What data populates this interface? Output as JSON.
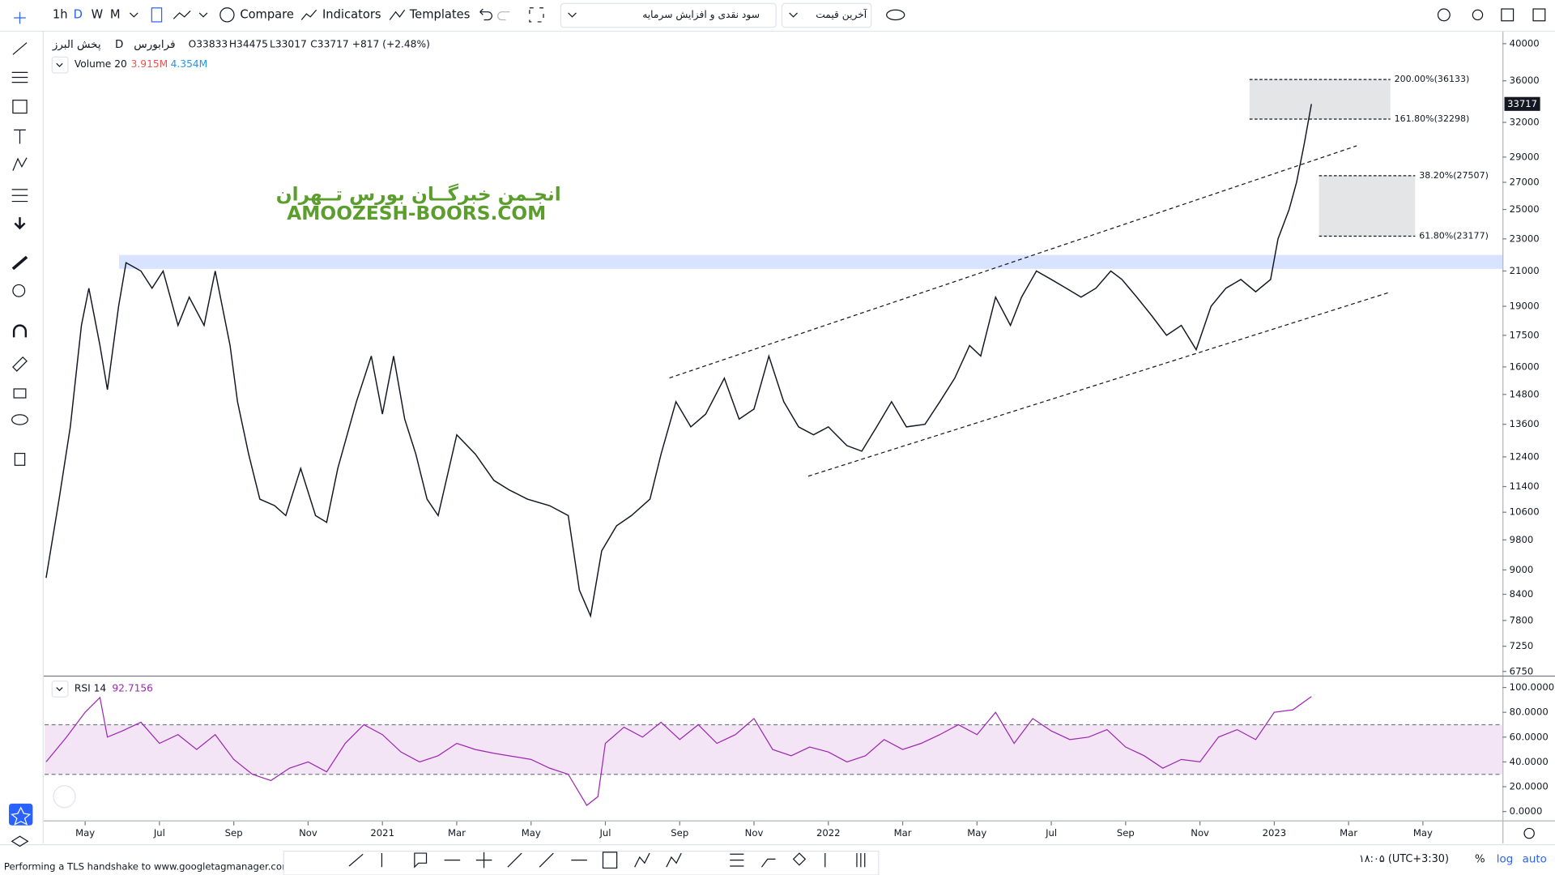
{
  "ui": {
    "intervals": [
      "1h",
      "D",
      "W",
      "M"
    ],
    "compare": "Compare",
    "indicators": "Indicators",
    "templates": "Templates",
    "dropdown_1": "سود نقدی و افزایش سرمایه",
    "dropdown_2": "آخرین قیمت",
    "watermark_fa": "انجـمن خبرگــان بورس تــهران",
    "watermark_en": "AMOOZESH-BOORS.COM",
    "status": "Performing a TLS handshake to www.googletagmanager.com...",
    "clock": "۱۸:۰۵ (UTC+3:30)",
    "scale_buttons": [
      "%",
      "log",
      "auto"
    ]
  },
  "chart_data": [
    {
      "type": "line",
      "symbol": "پخش البرز",
      "interval": "D",
      "exchange": "فرابورس",
      "ohlc": [
        "O33833",
        "H34475",
        "L33017",
        "C33717"
      ],
      "change": "+817 (+2.48%)",
      "volume_label": "Volume 20",
      "volume_values": [
        "3.915M",
        "4.354M"
      ],
      "x": [
        2.95,
        3.3,
        3.6,
        3.9,
        4.1,
        4.4,
        4.6,
        4.9,
        5.1,
        5.5,
        5.8,
        6.1,
        6.5,
        6.8,
        7.2,
        7.5,
        7.9,
        8.1,
        8.4,
        8.7,
        9.1,
        9.4,
        9.8,
        10.2,
        10.5,
        10.8,
        11.3,
        11.7,
        12.0,
        12.3,
        12.6,
        12.9,
        13.2,
        13.5,
        14.0,
        14.5,
        15.0,
        15.4,
        15.9,
        16.5,
        17.0,
        17.3,
        17.6,
        17.9,
        18.3,
        18.7,
        19.2,
        19.5,
        19.9,
        20.3,
        20.7,
        21.2,
        21.6,
        22.0,
        22.4,
        22.8,
        23.2,
        23.6,
        24.0,
        24.5,
        24.9,
        25.3,
        25.7,
        26.1,
        26.6,
        27.0,
        27.4,
        27.8,
        28.1,
        28.5,
        28.9,
        29.2,
        29.6,
        30.0,
        30.4,
        30.8,
        31.2,
        31.6,
        31.9,
        32.3,
        32.7,
        33.1,
        33.5,
        33.9,
        34.3,
        34.7,
        35.1,
        35.5,
        35.9,
        36.1,
        36.4,
        36.6,
        36.8,
        37.0
      ],
      "values": [
        8800,
        11000,
        13500,
        18000,
        20000,
        17000,
        15000,
        19000,
        21500,
        21000,
        20000,
        21000,
        18000,
        19500,
        18000,
        21000,
        17000,
        14500,
        12500,
        11000,
        10800,
        10500,
        12000,
        10500,
        10300,
        12000,
        14500,
        16500,
        14000,
        16500,
        13800,
        12500,
        11000,
        10500,
        13200,
        12500,
        11600,
        11300,
        11000,
        10800,
        10500,
        8500,
        7900,
        9500,
        10200,
        10500,
        11000,
        12500,
        14500,
        13500,
        14000,
        15500,
        13800,
        14200,
        16500,
        14500,
        13500,
        13200,
        13500,
        12800,
        12600,
        13500,
        14500,
        13500,
        13600,
        14500,
        15500,
        17000,
        16500,
        19500,
        18000,
        19500,
        21000,
        20500,
        20000,
        19500,
        20000,
        21000,
        20500,
        19500,
        18500,
        17500,
        18000,
        16800,
        19000,
        20000,
        20500,
        19800,
        20500,
        23000,
        25000,
        27000,
        30000,
        33717
      ],
      "color": "#131722",
      "log": true,
      "ylim": [
        6690,
        41370
      ],
      "yticks": [
        40000,
        36000,
        32000,
        29000,
        27000,
        25000,
        23000,
        21000,
        19000,
        17500,
        16000,
        14800,
        13600,
        12400,
        11400,
        10600,
        9800,
        9000,
        8400,
        7800,
        7250,
        6750
      ],
      "xlim": [
        2.91,
        42.14
      ],
      "xticks": [
        {
          "value": 4,
          "label": "May"
        },
        {
          "value": 6,
          "label": "Jul"
        },
        {
          "value": 8,
          "label": "Sep"
        },
        {
          "value": 10,
          "label": "Nov"
        },
        {
          "value": 12,
          "label": "2021"
        },
        {
          "value": 14,
          "label": "Mar"
        },
        {
          "value": 16,
          "label": "May"
        },
        {
          "value": 18,
          "label": "Jul"
        },
        {
          "value": 20,
          "label": "Sep"
        },
        {
          "value": 22,
          "label": "Nov"
        },
        {
          "value": 24,
          "label": "2022"
        },
        {
          "value": 26,
          "label": "Mar"
        },
        {
          "value": 28,
          "label": "May"
        },
        {
          "value": 30,
          "label": "Jul"
        },
        {
          "value": 32,
          "label": "Sep"
        },
        {
          "value": 34,
          "label": "Nov"
        },
        {
          "value": 36,
          "label": "2023"
        },
        {
          "value": 38,
          "label": "Mar"
        },
        {
          "value": 40,
          "label": "May"
        }
      ],
      "last_price": 33717,
      "fib_levels": [
        {
          "label": "200.00%(36133)",
          "value": 36133
        },
        {
          "label": "161.80%(32298)",
          "value": 32298
        },
        {
          "label": "38.20%(27507)",
          "value": 27507
        },
        {
          "label": "61.80%(23177)",
          "value": 23177
        }
      ]
    },
    {
      "type": "line",
      "label": "RSI 14",
      "value_label": "92.7156",
      "color": "#9c27b0",
      "x": [
        2.95,
        3.5,
        4.0,
        4.4,
        4.6,
        5.0,
        5.5,
        6.0,
        6.5,
        7.0,
        7.5,
        8.0,
        8.5,
        9.0,
        9.5,
        10.0,
        10.5,
        11.0,
        11.5,
        12.0,
        12.5,
        13.0,
        13.5,
        14.0,
        14.5,
        15.0,
        16.0,
        16.5,
        17.0,
        17.5,
        17.8,
        18.0,
        18.5,
        19.0,
        19.5,
        20.0,
        20.5,
        21.0,
        21.5,
        22.0,
        22.5,
        23.0,
        23.5,
        24.0,
        24.5,
        25.0,
        25.5,
        26.0,
        26.5,
        27.0,
        27.5,
        28.0,
        28.5,
        29.0,
        29.5,
        30.0,
        30.5,
        31.0,
        31.5,
        32.0,
        32.5,
        33.0,
        33.5,
        34.0,
        34.5,
        35.0,
        35.5,
        36.0,
        36.5,
        37.0
      ],
      "values": [
        40,
        60,
        80,
        92,
        60,
        65,
        72,
        55,
        62,
        50,
        62,
        42,
        30,
        25,
        35,
        40,
        32,
        55,
        70,
        62,
        48,
        40,
        45,
        55,
        50,
        47,
        42,
        35,
        30,
        5,
        12,
        55,
        68,
        60,
        72,
        58,
        70,
        55,
        62,
        75,
        50,
        45,
        52,
        48,
        40,
        45,
        58,
        50,
        55,
        62,
        70,
        62,
        80,
        55,
        75,
        65,
        58,
        60,
        66,
        52,
        45,
        35,
        42,
        40,
        60,
        66,
        58,
        80,
        82,
        92.7
      ],
      "ylim": [
        -6.4,
        105.6
      ],
      "yticks": [
        {
          "value": 100,
          "label": "100.0000"
        },
        {
          "value": 80,
          "label": "80.0000"
        },
        {
          "value": 60,
          "label": "60.0000"
        },
        {
          "value": 40,
          "label": "40.0000"
        },
        {
          "value": 20,
          "label": "20.0000"
        },
        {
          "value": 0,
          "label": "0.0000"
        }
      ],
      "bands": [
        30,
        70
      ],
      "band_color": "#f3e5f5"
    }
  ]
}
